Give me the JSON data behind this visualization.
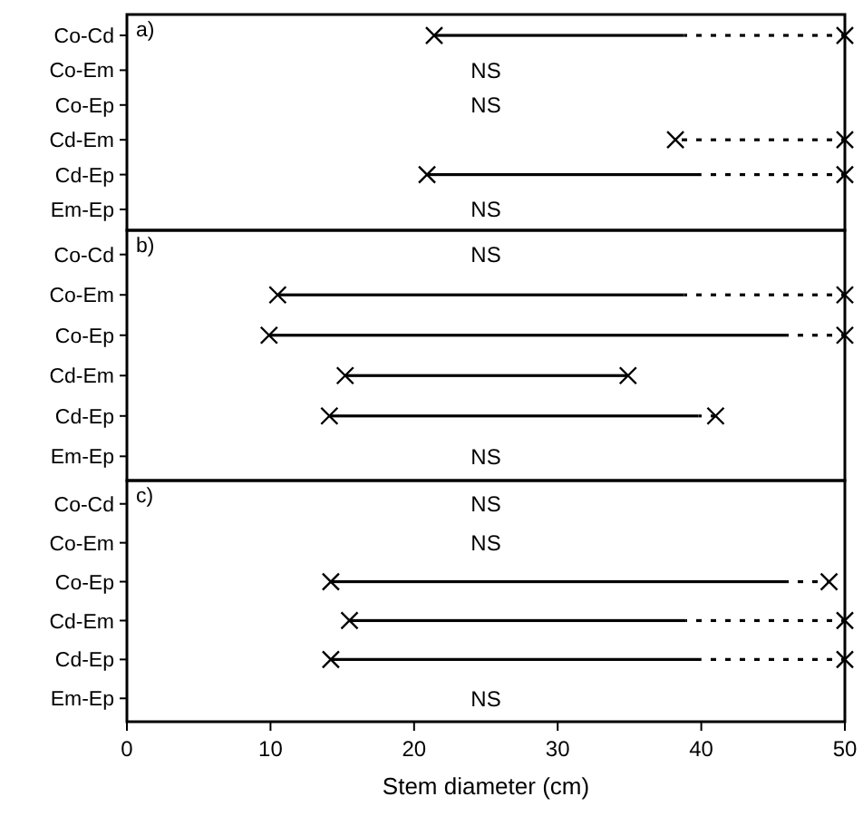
{
  "chart_data": [
    {
      "type": "bar",
      "orientation": "horizontal",
      "title": "a)",
      "categories": [
        "Co-Cd",
        "Co-Em",
        "Co-Ep",
        "Cd-Em",
        "Cd-Ep",
        "Em-Ep"
      ],
      "series": [
        {
          "color": "#000000",
          "line_style": "solid",
          "base": [
            21.4,
            null,
            null,
            null,
            20.9,
            null
          ],
          "values": [
            17.4,
            null,
            null,
            null,
            19.1,
            null
          ]
        },
        {
          "color": "#000000",
          "line_style": "dotted",
          "base": [
            38.8,
            null,
            null,
            38.2,
            40,
            null
          ],
          "values": [
            11.2,
            null,
            null,
            11.8,
            10,
            null
          ]
        }
      ],
      "marker": "cross",
      "xlim": [
        0,
        50
      ],
      "xticks": [
        0,
        10,
        20,
        30,
        40,
        50
      ],
      "tick_labels": "y",
      "annotations": [
        "NS",
        "NS",
        "NS"
      ]
    },
    {
      "type": "bar",
      "orientation": "horizontal",
      "title": "b)",
      "categories": [
        "Co-Cd",
        "Co-Em",
        "Co-Ep",
        "Cd-Em",
        "Cd-Ep",
        "Em-Ep"
      ],
      "series": [
        {
          "color": "#000000",
          "line_style": "solid",
          "base": [
            null,
            10.5,
            9.9,
            15.2,
            14.1,
            null
          ],
          "values": [
            null,
            28.3,
            36,
            19.7,
            25.7,
            null
          ]
        },
        {
          "color": "#000000",
          "line_style": "dotted",
          "base": [
            null,
            38.8,
            45.9,
            null,
            39.8,
            null
          ],
          "values": [
            null,
            11.2,
            4.1,
            null,
            1.2,
            null
          ]
        }
      ],
      "marker": "cross",
      "xlim": [
        0,
        50
      ],
      "xticks": [
        0,
        10,
        20,
        30,
        40,
        50
      ],
      "tick_labels": "y",
      "annotations": [
        "NS",
        "NS"
      ]
    },
    {
      "type": "bar",
      "orientation": "horizontal",
      "title": "c)",
      "xlabel": "Stem diameter (cm)",
      "categories": [
        "Co-Cd",
        "Co-Em",
        "Co-Ep",
        "Cd-Em",
        "Cd-Ep",
        "Em-Ep"
      ],
      "series": [
        {
          "color": "#000000",
          "line_style": "solid",
          "base": [
            null,
            null,
            14.2,
            15.5,
            14.2,
            null
          ],
          "values": [
            null,
            null,
            31.7,
            23.4,
            25.8,
            null
          ]
        },
        {
          "color": "#000000",
          "line_style": "dotted",
          "base": [
            null,
            null,
            45.9,
            38.9,
            40,
            null
          ],
          "values": [
            null,
            null,
            3,
            11.1,
            10,
            null
          ]
        }
      ],
      "marker": "cross",
      "xlim": [
        0,
        50
      ],
      "xticks": [
        0,
        10,
        20,
        30,
        40,
        50
      ],
      "annotations": [
        "NS",
        "NS",
        "NS"
      ]
    }
  ]
}
